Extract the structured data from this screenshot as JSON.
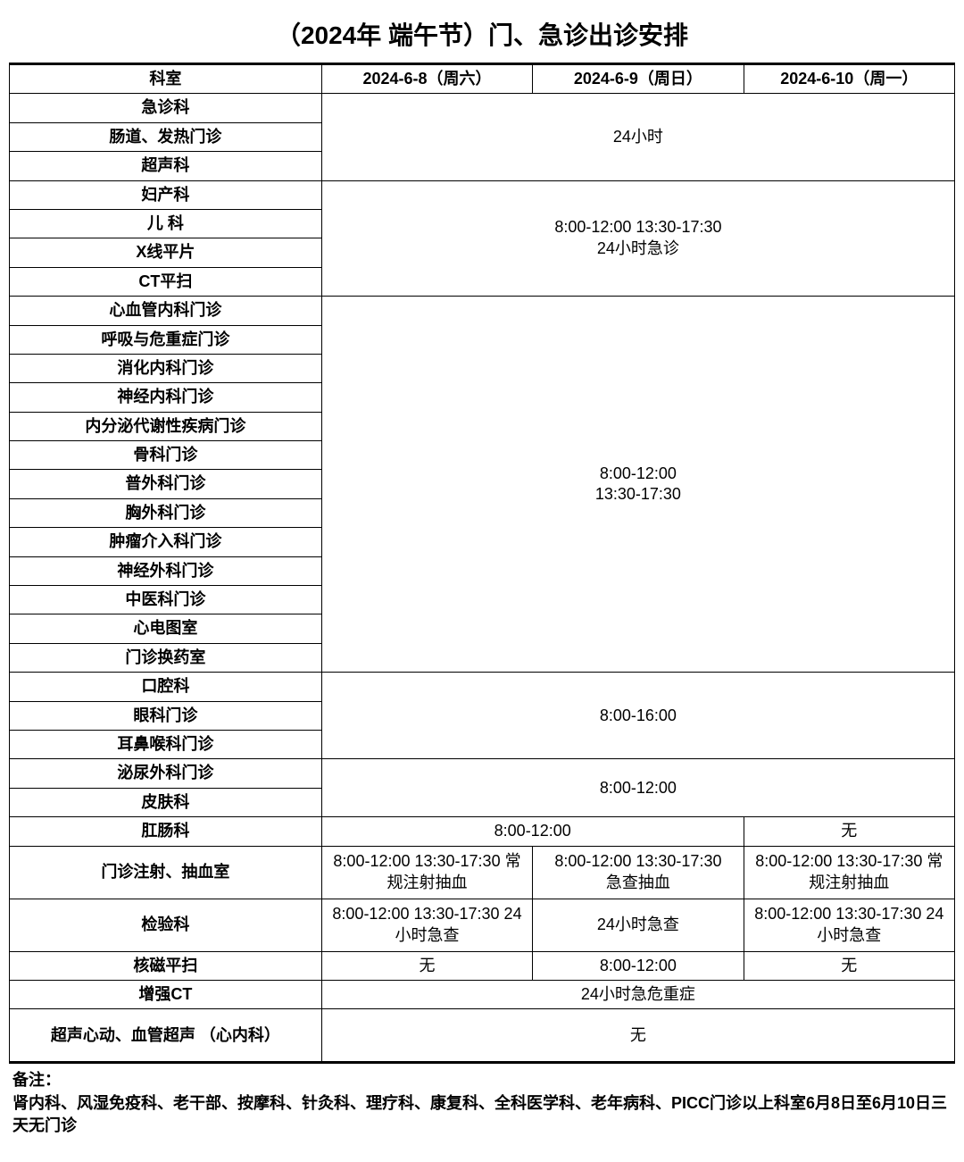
{
  "title": "（2024年 端午节）门、急诊出诊安排",
  "headers": {
    "dept": "科室",
    "d1": "2024-6-8（周六）",
    "d2": "2024-6-9（周日）",
    "d3": "2024-6-10（周一）"
  },
  "group1": {
    "depts": [
      "急诊科",
      "肠道、发热门诊",
      "超声科"
    ],
    "schedule": "24小时"
  },
  "group2": {
    "depts": [
      "妇产科",
      "儿  科",
      "X线平片",
      "CT平扫"
    ],
    "schedule": "8:00-12:00      13:30-17:30\n24小时急诊"
  },
  "group3": {
    "depts": [
      "心血管内科门诊",
      "呼吸与危重症门诊",
      "消化内科门诊",
      "神经内科门诊",
      "内分泌代谢性疾病门诊",
      "骨科门诊",
      "普外科门诊",
      "胸外科门诊",
      "肿瘤介入科门诊",
      "神经外科门诊",
      "中医科门诊",
      "心电图室",
      "门诊换药室"
    ],
    "schedule": "8:00-12:00\n13:30-17:30"
  },
  "group4": {
    "depts": [
      "口腔科",
      "眼科门诊",
      "耳鼻喉科门诊"
    ],
    "schedule": "8:00-16:00"
  },
  "group5": {
    "depts": [
      "泌尿外科门诊",
      "皮肤科"
    ],
    "schedule": "8:00-12:00"
  },
  "row_gangchang": {
    "dept": "肛肠科",
    "c12": "8:00-12:00",
    "c3": "无"
  },
  "row_inject": {
    "dept": "门诊注射、抽血室",
    "c1": "8:00-12:00  13:30-17:30      常规注射抽血",
    "c2": "8:00-12:00  13:30-17:30\n急查抽血",
    "c3": "8:00-12:00  13:30-17:30      常规注射抽血"
  },
  "row_jianyan": {
    "dept": "检验科",
    "c1": "8:00-12:00 13:30-17:30    24小时急查",
    "c2": "24小时急查",
    "c3": "8:00-12:00 13:30-17:30 24小时急查"
  },
  "row_heci": {
    "dept": "核磁平扫",
    "c1": "无",
    "c2": "8:00-12:00",
    "c3": "无"
  },
  "row_zengqiangct": {
    "dept": "增强CT",
    "all": "24小时急危重症"
  },
  "row_chaosheng": {
    "dept": "超声心动、血管超声 （心内科）",
    "all": "无"
  },
  "footnote": {
    "title": "备注：",
    "body": "肾内科、风湿免疫科、老干部、按摩科、针灸科、理疗科、康复科、全科医学科、老年病科、PICC门诊以上科室6月8日至6月10日三天无门诊"
  }
}
